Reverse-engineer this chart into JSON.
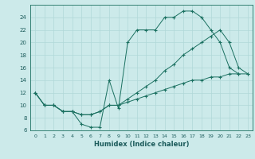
{
  "xlabel": "Humidex (Indice chaleur)",
  "bg_color": "#cceaea",
  "line_color": "#1a7060",
  "grid_color": "#b0d8d8",
  "xlim": [
    -0.5,
    23.5
  ],
  "ylim": [
    6,
    26
  ],
  "xticks": [
    0,
    1,
    2,
    3,
    4,
    5,
    6,
    7,
    8,
    9,
    10,
    11,
    12,
    13,
    14,
    15,
    16,
    17,
    18,
    19,
    20,
    21,
    22,
    23
  ],
  "yticks": [
    6,
    8,
    10,
    12,
    14,
    16,
    18,
    20,
    22,
    24
  ],
  "line1_x": [
    0,
    1,
    2,
    3,
    4,
    5,
    6,
    7,
    8,
    9,
    10,
    11,
    12,
    13,
    14,
    15,
    16,
    17,
    18,
    19,
    20,
    21,
    22,
    23
  ],
  "line1_y": [
    12,
    10,
    10,
    9,
    9,
    7,
    6.5,
    6.5,
    14,
    9.5,
    20,
    22,
    22,
    22,
    24,
    24,
    25,
    25,
    24,
    22,
    20,
    16,
    15,
    null
  ],
  "line2_x": [
    0,
    1,
    2,
    3,
    4,
    5,
    6,
    7,
    8,
    9,
    10,
    11,
    12,
    13,
    14,
    15,
    16,
    17,
    18,
    19,
    20,
    21,
    22,
    23
  ],
  "line2_y": [
    12,
    10,
    10,
    9,
    9,
    8.5,
    8.5,
    9,
    10,
    10,
    11,
    12,
    13,
    14,
    15.5,
    16.5,
    18,
    19,
    20,
    21,
    22,
    20,
    16,
    15
  ],
  "line3_x": [
    0,
    1,
    2,
    3,
    4,
    5,
    6,
    7,
    8,
    9,
    10,
    11,
    12,
    13,
    14,
    15,
    16,
    17,
    18,
    19,
    20,
    21,
    22,
    23
  ],
  "line3_y": [
    12,
    10,
    10,
    9,
    9,
    8.5,
    8.5,
    9,
    10,
    10,
    10.5,
    11,
    11.5,
    12,
    12.5,
    13,
    13.5,
    14,
    14,
    14.5,
    14.5,
    15,
    15,
    15
  ]
}
